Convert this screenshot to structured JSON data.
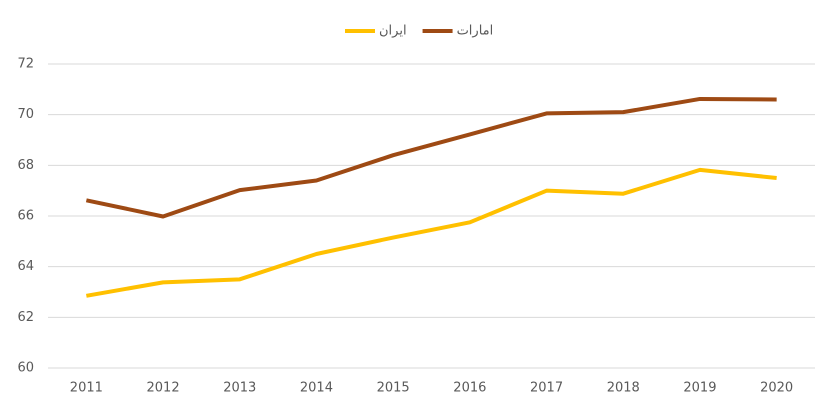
{
  "chart_data": {
    "type": "line",
    "categories": [
      "2011",
      "2012",
      "2013",
      "2014",
      "2015",
      "2016",
      "2017",
      "2018",
      "2019",
      "2020"
    ],
    "series": [
      {
        "name": "ایران",
        "color": "#ffc000",
        "values": [
          62.85,
          63.38,
          63.5,
          64.5,
          65.15,
          65.75,
          67.0,
          66.88,
          67.82,
          67.5
        ]
      },
      {
        "name": "امارات",
        "color": "#9e4a14",
        "values": [
          66.62,
          65.98,
          67.02,
          67.4,
          68.4,
          69.22,
          70.05,
          70.1,
          70.62,
          70.6
        ]
      }
    ],
    "ylim": [
      60,
      72
    ],
    "yticks": [
      60,
      62,
      64,
      66,
      68,
      70,
      72
    ],
    "grid": true,
    "legend": "top"
  }
}
